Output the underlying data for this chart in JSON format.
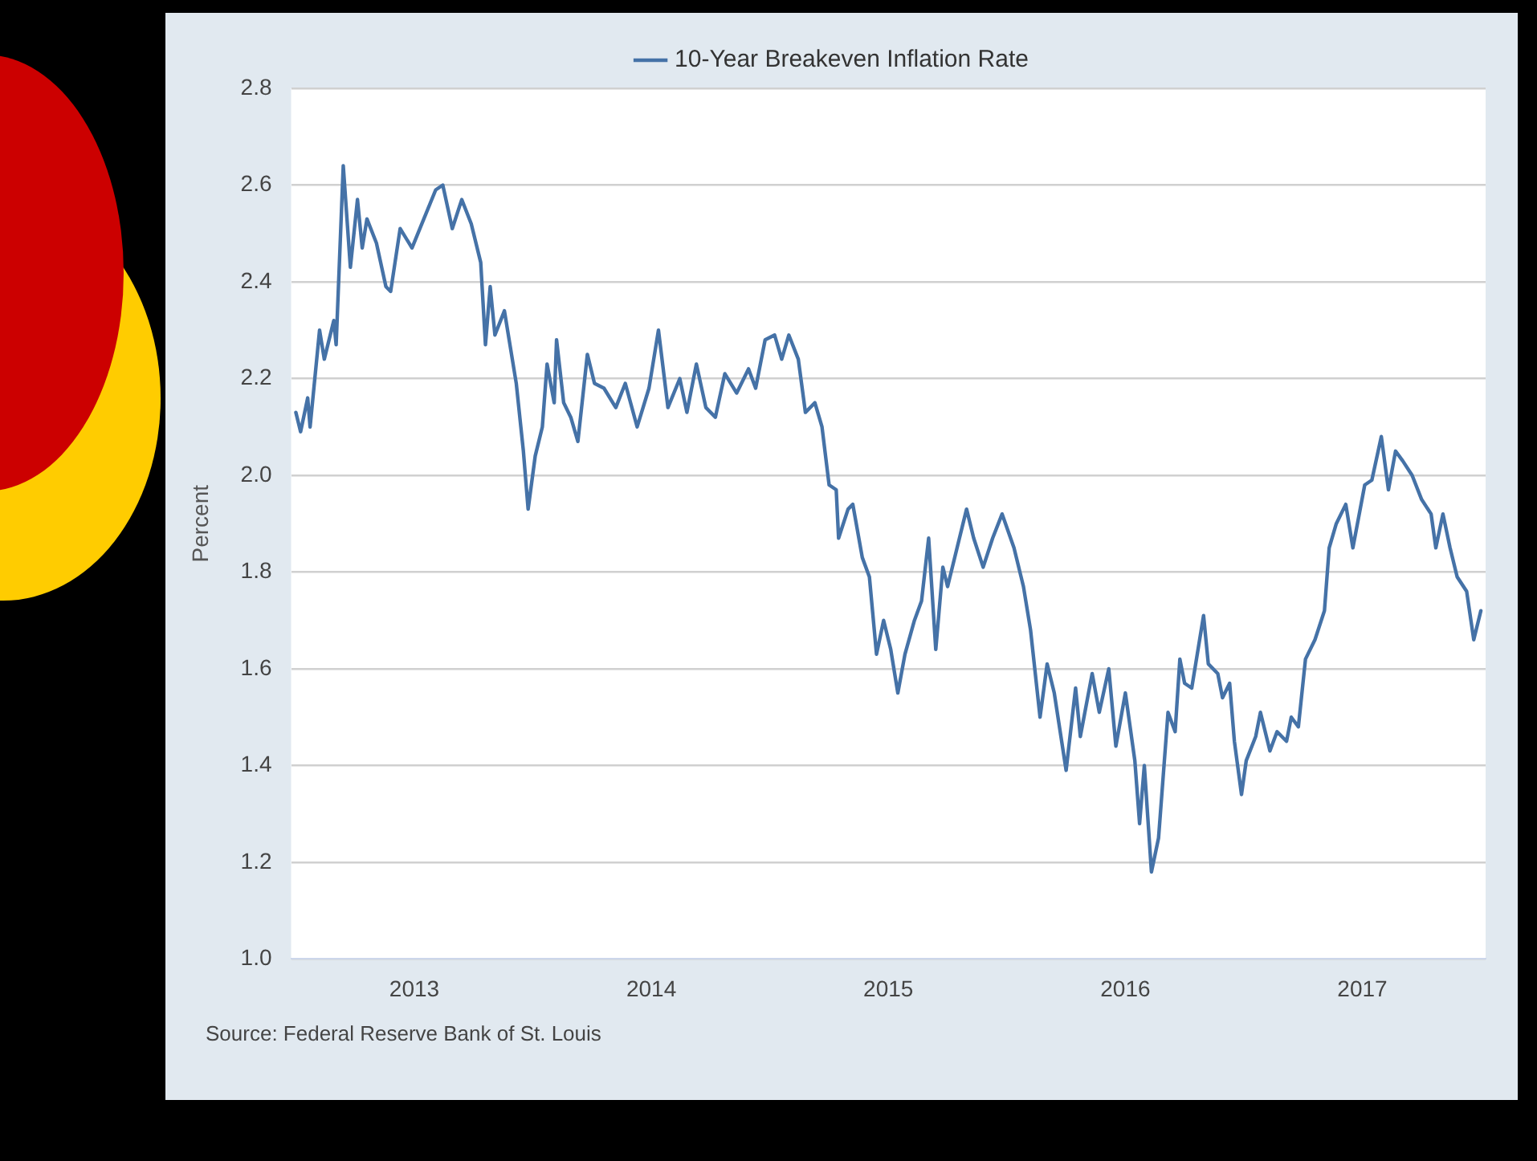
{
  "chart_data": {
    "type": "line",
    "ylabel": "Percent",
    "annotations": [
      "Source: Federal Reserve Bank of St. Louis"
    ],
    "xlim": [
      2012.48,
      2017.52
    ],
    "xticks": [
      2013,
      2014,
      2015,
      2016,
      2017
    ],
    "ylim": [
      1.0,
      2.8
    ],
    "yticks": [
      {
        "value": 1,
        "label": "1.0"
      },
      1.2,
      1.4,
      1.6,
      1.8,
      {
        "value": 2,
        "label": "2.0"
      },
      2.2,
      2.4,
      2.6,
      2.8
    ],
    "grid": "y",
    "legend": "top",
    "marker": "none",
    "line_style": "solid",
    "series": [
      {
        "name": "10-Year Breakeven Inflation Rate",
        "color": "#4572a7",
        "x": [
          2012.5,
          2012.52,
          2012.55,
          2012.56,
          2012.6,
          2012.62,
          2012.66,
          2012.67,
          2012.7,
          2012.73,
          2012.76,
          2012.78,
          2012.8,
          2012.84,
          2012.88,
          2012.9,
          2012.94,
          2012.99,
          2013.04,
          2013.09,
          2013.12,
          2013.16,
          2013.2,
          2013.24,
          2013.28,
          2013.3,
          2013.32,
          2013.34,
          2013.38,
          2013.4,
          2013.43,
          2013.46,
          2013.48,
          2013.51,
          2013.54,
          2013.56,
          2013.59,
          2013.6,
          2013.63,
          2013.66,
          2013.69,
          2013.73,
          2013.76,
          2013.8,
          2013.85,
          2013.89,
          2013.94,
          2013.99,
          2014.03,
          2014.07,
          2014.12,
          2014.15,
          2014.19,
          2014.23,
          2014.27,
          2014.31,
          2014.36,
          2014.41,
          2014.44,
          2014.48,
          2014.52,
          2014.55,
          2014.58,
          2014.62,
          2014.65,
          2014.69,
          2014.72,
          2014.75,
          2014.78,
          2014.79,
          2014.83,
          2014.85,
          2014.89,
          2014.92,
          2014.95,
          2014.98,
          2015.01,
          2015.04,
          2015.07,
          2015.11,
          2015.14,
          2015.17,
          2015.2,
          2015.23,
          2015.25,
          2015.29,
          2015.33,
          2015.36,
          2015.4,
          2015.44,
          2015.48,
          2015.53,
          2015.57,
          2015.6,
          2015.64,
          2015.67,
          2015.7,
          2015.75,
          2015.79,
          2015.81,
          2015.86,
          2015.89,
          2015.93,
          2015.96,
          2016.0,
          2016.04,
          2016.06,
          2016.08,
          2016.11,
          2016.14,
          2016.18,
          2016.21,
          2016.23,
          2016.25,
          2016.28,
          2016.33,
          2016.35,
          2016.39,
          2016.41,
          2016.44,
          2016.46,
          2016.49,
          2016.51,
          2016.55,
          2016.57,
          2016.61,
          2016.64,
          2016.68,
          2016.7,
          2016.73,
          2016.76,
          2016.8,
          2016.84,
          2016.86,
          2016.89,
          2016.93,
          2016.96,
          2017.01,
          2017.04,
          2017.08,
          2017.11,
          2017.14,
          2017.17,
          2017.21,
          2017.25,
          2017.29,
          2017.31,
          2017.34,
          2017.37,
          2017.4,
          2017.44,
          2017.47,
          2017.5
        ],
        "values": [
          2.13,
          2.09,
          2.16,
          2.1,
          2.3,
          2.24,
          2.32,
          2.27,
          2.64,
          2.43,
          2.57,
          2.47,
          2.53,
          2.48,
          2.39,
          2.38,
          2.51,
          2.47,
          2.53,
          2.59,
          2.6,
          2.51,
          2.57,
          2.52,
          2.44,
          2.27,
          2.39,
          2.29,
          2.34,
          2.28,
          2.19,
          2.05,
          1.93,
          2.04,
          2.1,
          2.23,
          2.15,
          2.28,
          2.15,
          2.12,
          2.07,
          2.25,
          2.19,
          2.18,
          2.14,
          2.19,
          2.1,
          2.18,
          2.3,
          2.14,
          2.2,
          2.13,
          2.23,
          2.14,
          2.12,
          2.21,
          2.17,
          2.22,
          2.18,
          2.28,
          2.29,
          2.24,
          2.29,
          2.24,
          2.13,
          2.15,
          2.1,
          1.98,
          1.97,
          1.87,
          1.93,
          1.94,
          1.83,
          1.79,
          1.63,
          1.7,
          1.64,
          1.55,
          1.63,
          1.7,
          1.74,
          1.87,
          1.64,
          1.81,
          1.77,
          1.85,
          1.93,
          1.87,
          1.81,
          1.87,
          1.92,
          1.85,
          1.77,
          1.68,
          1.5,
          1.61,
          1.55,
          1.39,
          1.56,
          1.46,
          1.59,
          1.51,
          1.6,
          1.44,
          1.55,
          1.41,
          1.28,
          1.4,
          1.18,
          1.25,
          1.51,
          1.47,
          1.62,
          1.57,
          1.56,
          1.71,
          1.61,
          1.59,
          1.54,
          1.57,
          1.45,
          1.34,
          1.41,
          1.46,
          1.51,
          1.43,
          1.47,
          1.45,
          1.5,
          1.48,
          1.62,
          1.66,
          1.72,
          1.85,
          1.9,
          1.94,
          1.85,
          1.98,
          1.99,
          2.08,
          1.97,
          2.05,
          2.03,
          2.0,
          1.95,
          1.92,
          1.85,
          1.92,
          1.85,
          1.79,
          1.76,
          1.66,
          1.72
        ]
      }
    ]
  }
}
